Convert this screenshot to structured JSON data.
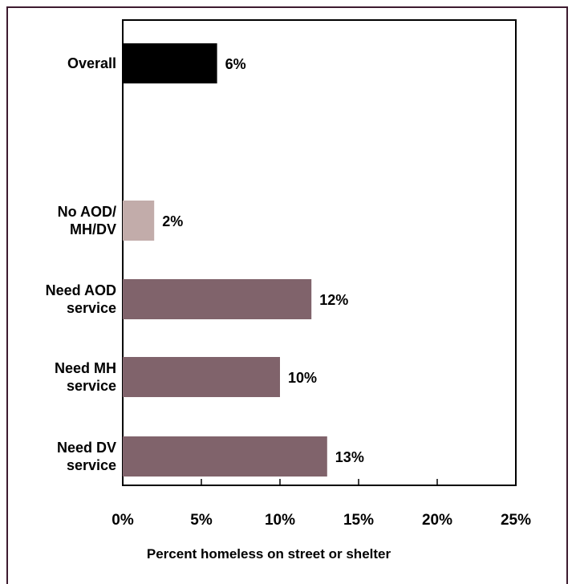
{
  "chart_data": {
    "type": "bar",
    "orientation": "horizontal",
    "categories": [
      [
        "Overall"
      ],
      [
        "No AOD/",
        "MH/DV"
      ],
      [
        "Need AOD",
        "service"
      ],
      [
        "Need MH",
        "service"
      ],
      [
        "Need DV",
        "service"
      ]
    ],
    "values": [
      6,
      2,
      12,
      10,
      13
    ],
    "value_labels": [
      "6%",
      "2%",
      "12%",
      "10%",
      "13%"
    ],
    "bar_colors": [
      "#000000",
      "#c2acaa",
      "#80636b",
      "#80636b",
      "#80636b"
    ],
    "xlim": [
      0,
      25
    ],
    "x_ticks": [
      0,
      5,
      10,
      15,
      20,
      25
    ],
    "x_tick_labels": [
      "0%",
      "5%",
      "10%",
      "15%",
      "20%",
      "25%"
    ],
    "xlabel": "Percent homeless on street or shelter",
    "grid": false
  },
  "colors": {
    "frame": "#3d1b2f",
    "axis": "#000000"
  }
}
